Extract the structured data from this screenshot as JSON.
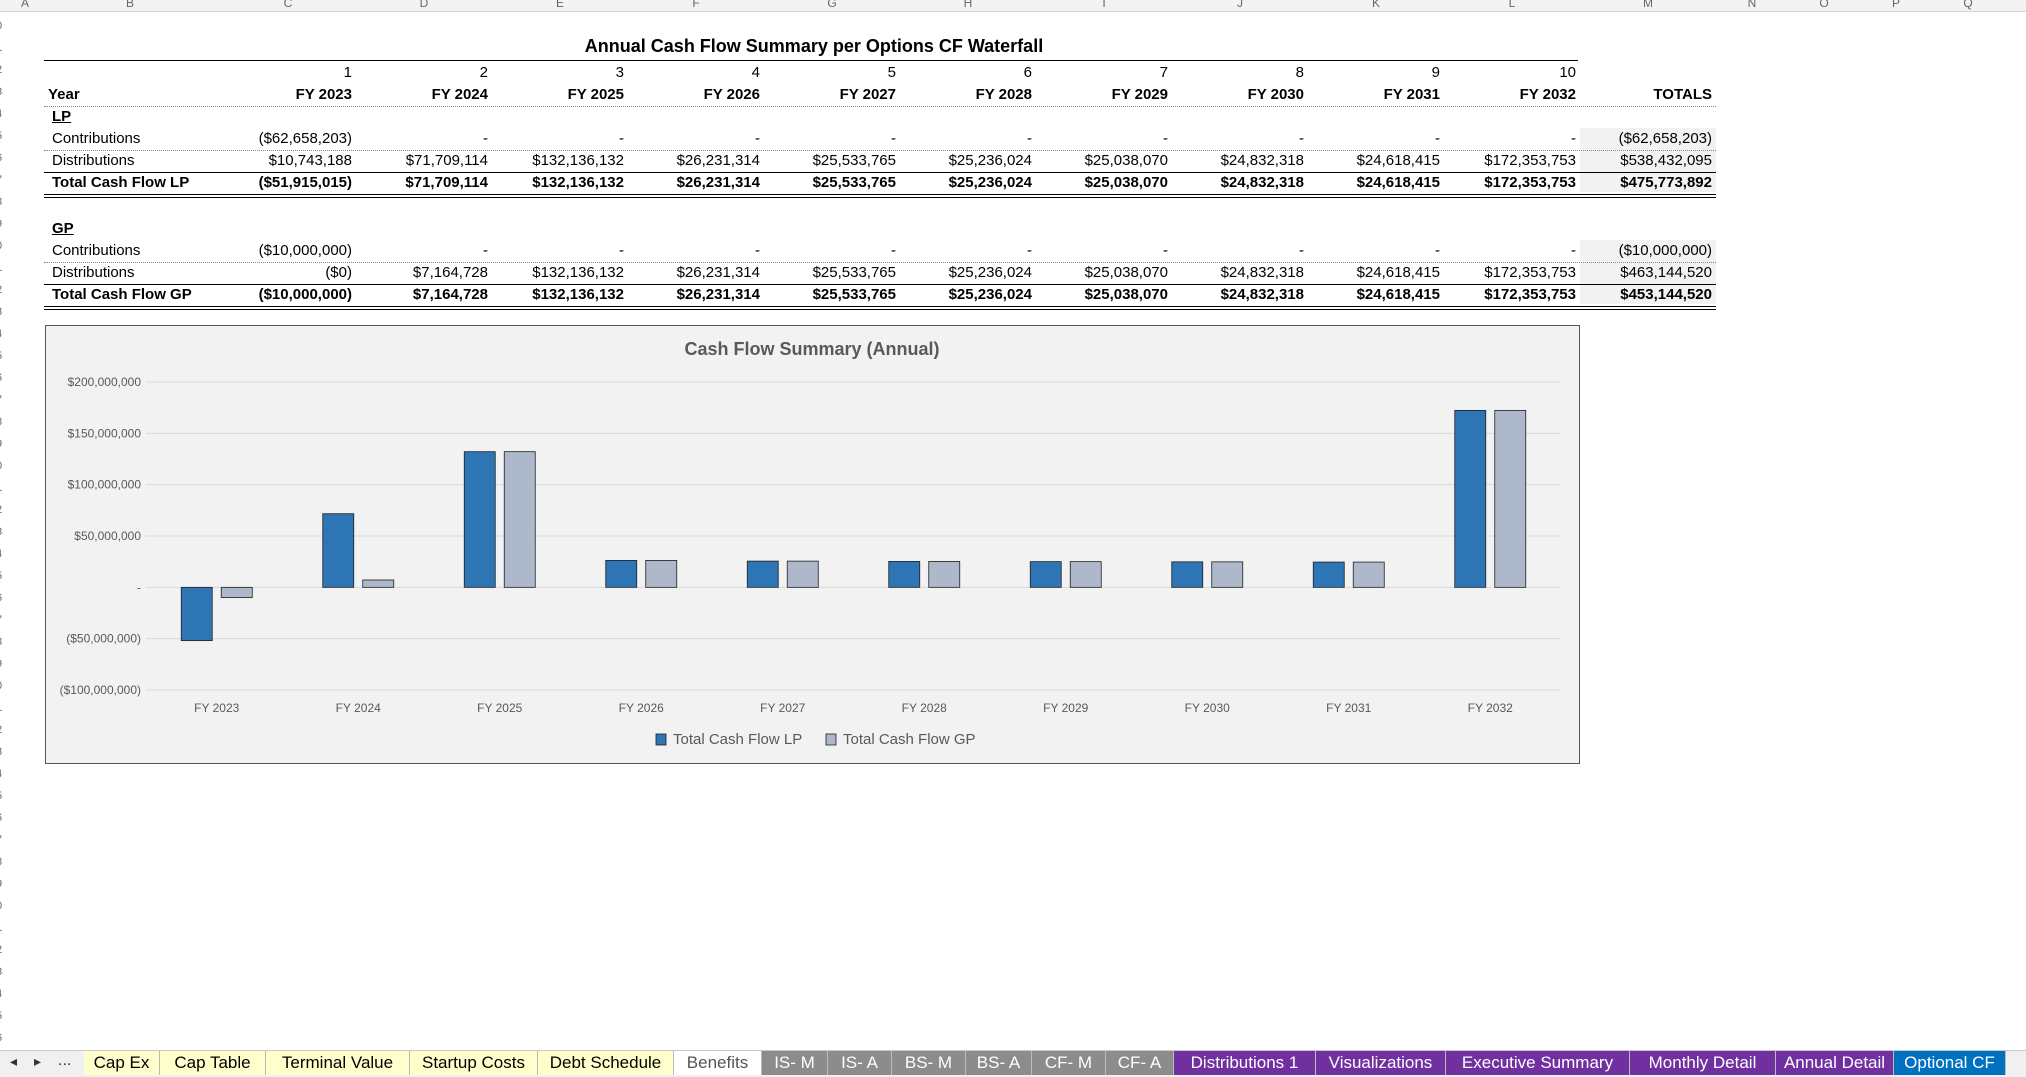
{
  "column_letters": [
    "A",
    "B",
    "C",
    "D",
    "E",
    "F",
    "G",
    "H",
    "I",
    "J",
    "K",
    "L",
    "M",
    "N",
    "O",
    "P",
    "Q"
  ],
  "row_numbers": [
    "0",
    "1",
    "2",
    "3",
    "4",
    "5",
    "6",
    "7",
    "8",
    "9",
    "0",
    "1",
    "2",
    "3",
    "4",
    "5",
    "6",
    "7",
    "8",
    "9",
    "0",
    "1",
    "2",
    "3",
    "4",
    "5",
    "6",
    "7",
    "8",
    "9",
    "0",
    "1",
    "2",
    "3",
    "4",
    "5",
    "6",
    "7",
    "8",
    "9",
    "0",
    "1",
    "2",
    "3",
    "4",
    "5",
    "6",
    "7"
  ],
  "title": "Annual Cash Flow Summary per Options CF Waterfall",
  "header": {
    "period_numbers": [
      "1",
      "2",
      "3",
      "4",
      "5",
      "6",
      "7",
      "8",
      "9",
      "10"
    ],
    "year_label": "Year",
    "years": [
      "FY 2023",
      "FY 2024",
      "FY 2025",
      "FY 2026",
      "FY 2027",
      "FY 2028",
      "FY 2029",
      "FY 2030",
      "FY 2031",
      "FY 2032"
    ],
    "totals_label": "TOTALS"
  },
  "lp": {
    "label": "LP",
    "rows": [
      {
        "label": "Contributions",
        "values": [
          "($62,658,203)",
          "-",
          "-",
          "-",
          "-",
          "-",
          "-",
          "-",
          "-",
          "-"
        ],
        "total": "($62,658,203)"
      },
      {
        "label": "Distributions",
        "values": [
          "$10,743,188",
          "$71,709,114",
          "$132,136,132",
          "$26,231,314",
          "$25,533,765",
          "$25,236,024",
          "$25,038,070",
          "$24,832,318",
          "$24,618,415",
          "$172,353,753"
        ],
        "total": "$538,432,095"
      },
      {
        "label": "Total Cash Flow LP",
        "values": [
          "($51,915,015)",
          "$71,709,114",
          "$132,136,132",
          "$26,231,314",
          "$25,533,765",
          "$25,236,024",
          "$25,038,070",
          "$24,832,318",
          "$24,618,415",
          "$172,353,753"
        ],
        "total": "$475,773,892"
      }
    ]
  },
  "gp": {
    "label": "GP",
    "rows": [
      {
        "label": "Contributions",
        "values": [
          "($10,000,000)",
          "-",
          "-",
          "-",
          "-",
          "-",
          "-",
          "-",
          "-",
          "-"
        ],
        "total": "($10,000,000)"
      },
      {
        "label": "Distributions",
        "values": [
          "($0)",
          "$7,164,728",
          "$132,136,132",
          "$26,231,314",
          "$25,533,765",
          "$25,236,024",
          "$25,038,070",
          "$24,832,318",
          "$24,618,415",
          "$172,353,753"
        ],
        "total": "$463,144,520"
      },
      {
        "label": "Total Cash Flow GP",
        "values": [
          "($10,000,000)",
          "$7,164,728",
          "$132,136,132",
          "$26,231,314",
          "$25,533,765",
          "$25,236,024",
          "$25,038,070",
          "$24,832,318",
          "$24,618,415",
          "$172,353,753"
        ],
        "total": "$453,144,520"
      }
    ]
  },
  "chart_data": {
    "type": "bar",
    "title": "Cash Flow Summary (Annual)",
    "categories": [
      "FY 2023",
      "FY 2024",
      "FY 2025",
      "FY 2026",
      "FY 2027",
      "FY 2028",
      "FY 2029",
      "FY 2030",
      "FY 2031",
      "FY 2032"
    ],
    "series": [
      {
        "name": "Total Cash Flow LP",
        "color": "#2e75b6",
        "values": [
          -51915015,
          71709114,
          132136132,
          26231314,
          25533765,
          25236024,
          25038070,
          24832318,
          24618415,
          172353753
        ]
      },
      {
        "name": "Total Cash Flow GP",
        "color": "#adb9ca",
        "values": [
          -10000000,
          7164728,
          132136132,
          26231314,
          25533765,
          25236024,
          25038070,
          24832318,
          24618415,
          172353753
        ]
      }
    ],
    "ylim": [
      -100000000,
      200000000
    ],
    "yticks": [
      200000000,
      150000000,
      100000000,
      50000000,
      0,
      -50000000,
      -100000000
    ],
    "ytick_labels": [
      "$200,000,000",
      "$150,000,000",
      "$100,000,000",
      "$50,000,000",
      "-",
      "($50,000,000)",
      "($100,000,000)"
    ],
    "grid": true,
    "legend": "bottom",
    "xlabel": "",
    "ylabel": ""
  },
  "tabs": {
    "nav_ellipsis": "...",
    "items": [
      {
        "label": "Cap Ex",
        "bg": "#ffffcc",
        "fg": "#000000"
      },
      {
        "label": "Cap Table",
        "bg": "#ffffcc",
        "fg": "#000000"
      },
      {
        "label": "Terminal Value",
        "bg": "#ffffcc",
        "fg": "#000000"
      },
      {
        "label": "Startup Costs",
        "bg": "#ffffcc",
        "fg": "#000000"
      },
      {
        "label": "Debt Schedule",
        "bg": "#ffffcc",
        "fg": "#000000"
      },
      {
        "label": "Benefits",
        "bg": "#ffffff",
        "fg": "#555555"
      },
      {
        "label": "IS- M",
        "bg": "#8c8c8c",
        "fg": "#ffffff"
      },
      {
        "label": "IS- A",
        "bg": "#8c8c8c",
        "fg": "#ffffff"
      },
      {
        "label": "BS- M",
        "bg": "#8c8c8c",
        "fg": "#ffffff"
      },
      {
        "label": "BS- A",
        "bg": "#8c8c8c",
        "fg": "#ffffff"
      },
      {
        "label": "CF- M",
        "bg": "#8c8c8c",
        "fg": "#ffffff"
      },
      {
        "label": "CF- A",
        "bg": "#8c8c8c",
        "fg": "#ffffff"
      },
      {
        "label": "Distributions 1",
        "bg": "#7030a0",
        "fg": "#ffffff"
      },
      {
        "label": "Visualizations",
        "bg": "#7030a0",
        "fg": "#ffffff"
      },
      {
        "label": "Executive Summary",
        "bg": "#7030a0",
        "fg": "#ffffff"
      },
      {
        "label": "Monthly Detail",
        "bg": "#7030a0",
        "fg": "#ffffff"
      },
      {
        "label": "Annual Detail",
        "bg": "#7030a0",
        "fg": "#ffffff"
      },
      {
        "label": "Optional CF",
        "bg": "#0070c0",
        "fg": "#ffffff"
      }
    ]
  }
}
